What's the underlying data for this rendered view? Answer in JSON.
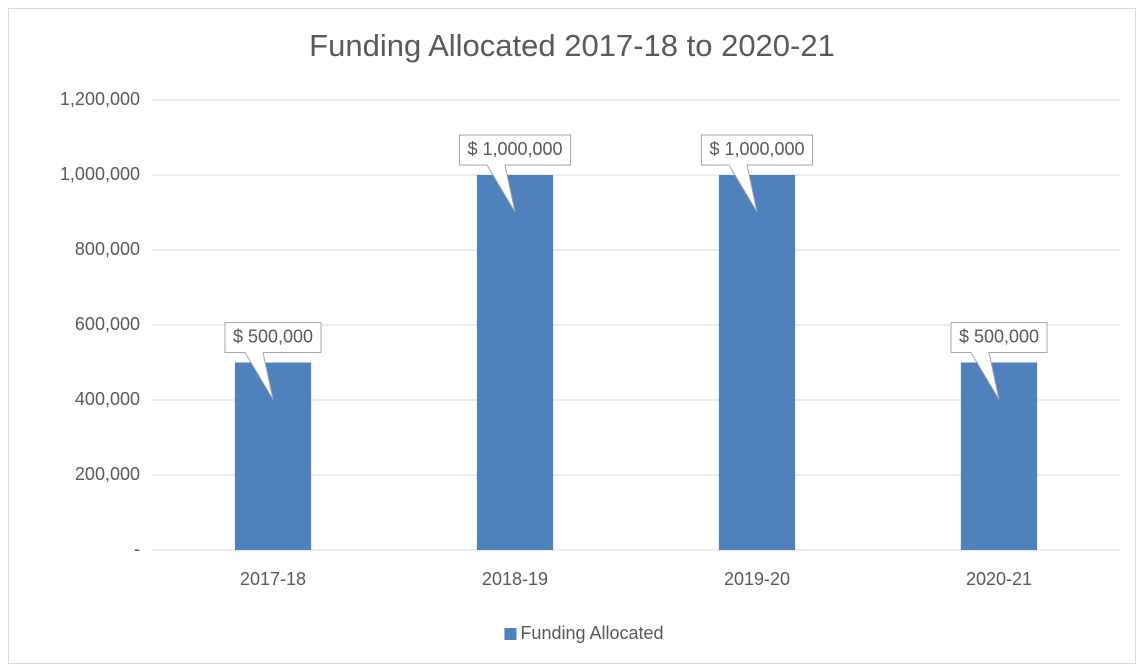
{
  "chart_data": {
    "type": "bar",
    "title": "Funding Allocated 2017-18 to 2020-21",
    "categories": [
      "2017-18",
      "2018-19",
      "2019-20",
      "2020-21"
    ],
    "series": [
      {
        "name": "Funding Allocated",
        "color": "#4f81bd",
        "values": [
          500000,
          1000000,
          1000000,
          500000
        ],
        "value_labels": [
          "$ 500,000",
          "$ 1,000,000",
          "$ 1,000,000",
          "$ 500,000"
        ]
      }
    ],
    "ylim": [
      0,
      1200000
    ],
    "yticks": [
      {
        "value": 0,
        "label": "-"
      },
      {
        "value": 200000,
        "label": "200,000"
      },
      {
        "value": 400000,
        "label": "400,000"
      },
      {
        "value": 600000,
        "label": "600,000"
      },
      {
        "value": 800000,
        "label": "800,000"
      },
      {
        "value": 1000000,
        "label": "1,000,000"
      },
      {
        "value": 1200000,
        "label": "1,200,000"
      }
    ],
    "grid": true,
    "legend": "bottom"
  }
}
